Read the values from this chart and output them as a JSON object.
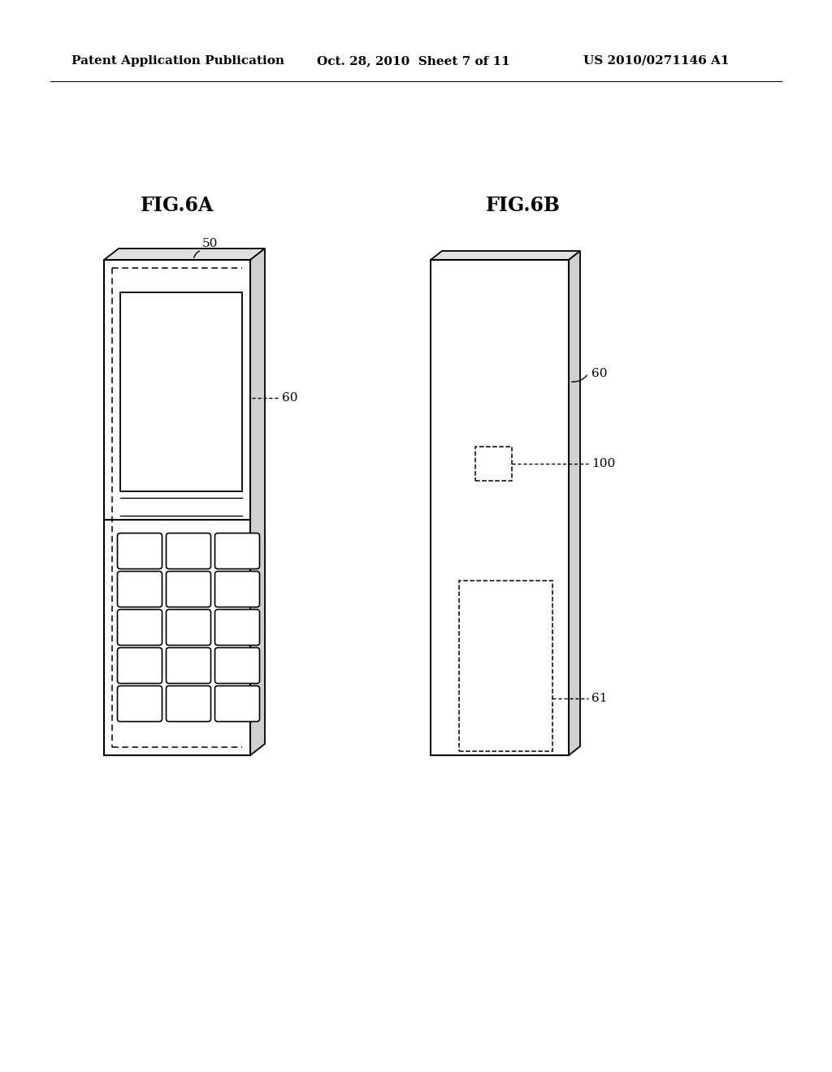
{
  "background_color": "#ffffff",
  "header_left": "Patent Application Publication",
  "header_center": "Oct. 28, 2010  Sheet 7 of 11",
  "header_right": "US 2010/0271146 A1",
  "fig6a_title": "FIG.6A",
  "fig6b_title": "FIG.6B",
  "label_50": "50",
  "label_60a": "60",
  "label_60b": "60",
  "label_100": "100",
  "label_61": "61"
}
